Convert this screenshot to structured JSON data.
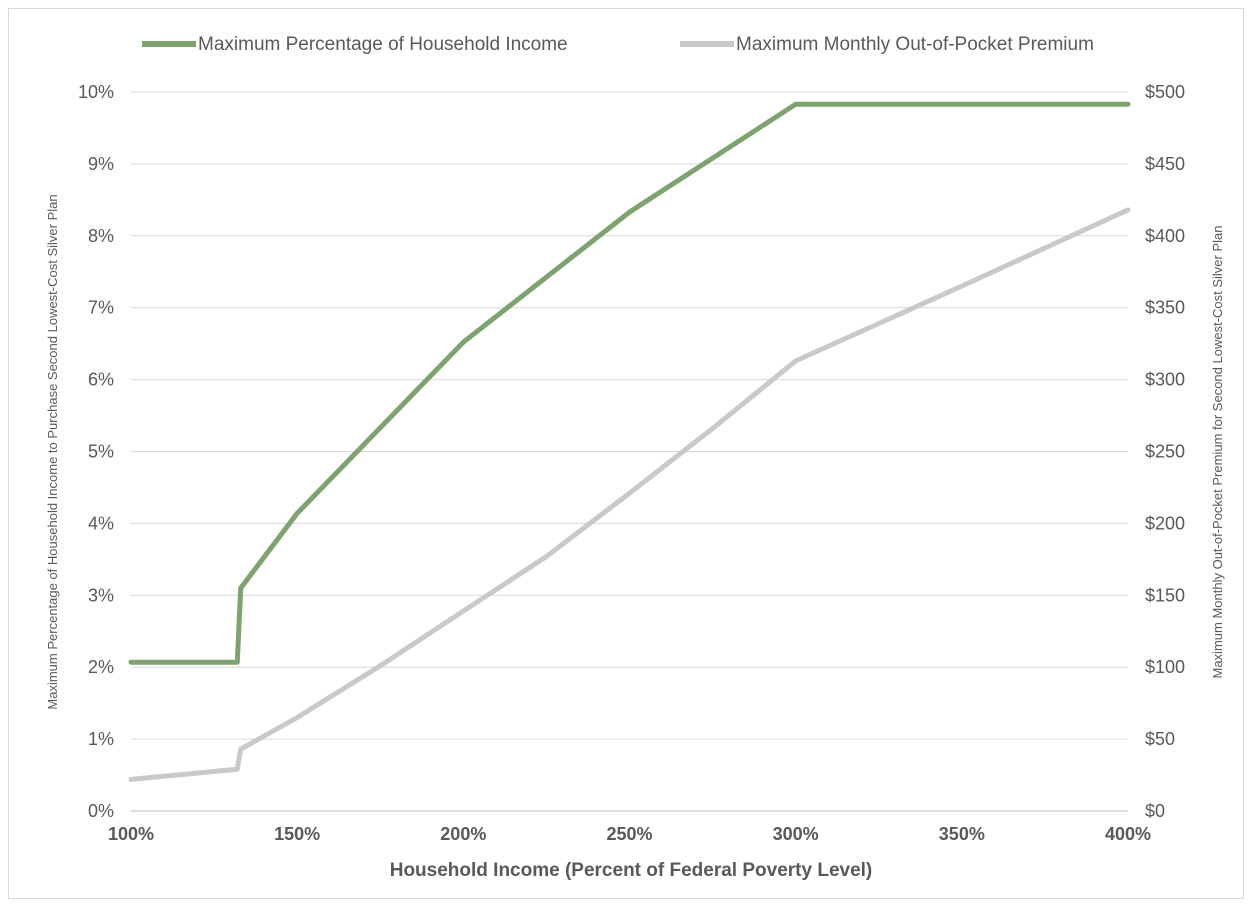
{
  "chart_data": {
    "type": "line",
    "title": "",
    "xlabel": "Household Income (Percent of Federal Poverty Level)",
    "ylabel_left": "Maximum Percentage of Household Income to Purchase Second Lowest-Cost Silver Plan",
    "ylabel_right": "Maximum Monthly Out-of-Pocket Premium for Second Lowest-Cost Silver Plan",
    "xlim": [
      100,
      400
    ],
    "ylim_left": [
      0,
      10
    ],
    "ylim_right": [
      0,
      500
    ],
    "x_ticks": [
      "100%",
      "150%",
      "200%",
      "250%",
      "300%",
      "350%",
      "400%"
    ],
    "x_tick_values": [
      100,
      150,
      200,
      250,
      300,
      350,
      400
    ],
    "y_left_ticks": [
      "0%",
      "1%",
      "2%",
      "3%",
      "4%",
      "5%",
      "6%",
      "7%",
      "8%",
      "9%",
      "10%"
    ],
    "y_left_tick_values": [
      0,
      1,
      2,
      3,
      4,
      5,
      6,
      7,
      8,
      9,
      10
    ],
    "y_right_ticks": [
      "$0",
      "$50",
      "$100",
      "$150",
      "$200",
      "$250",
      "$300",
      "$350",
      "$400",
      "$450",
      "$500"
    ],
    "y_right_tick_values": [
      0,
      50,
      100,
      150,
      200,
      250,
      300,
      350,
      400,
      450,
      500
    ],
    "grid": true,
    "legend_position": "top",
    "series": [
      {
        "name": "Maximum Percentage of Household Income",
        "axis": "left",
        "color": "#7ea36e",
        "x": [
          100,
          132,
          133,
          150,
          200,
          250,
          300,
          400
        ],
        "y": [
          2.07,
          2.07,
          3.1,
          4.14,
          6.52,
          8.33,
          9.83,
          9.83
        ]
      },
      {
        "name": "Maximum Monthly Out-of-Pocket Premium",
        "axis": "right",
        "color": "#c8c9c8",
        "x": [
          100,
          132,
          133,
          150,
          175,
          200,
          225,
          250,
          275,
          300,
          350,
          400
        ],
        "y": [
          22,
          29,
          43,
          65,
          101,
          139,
          177,
          221,
          266,
          313,
          365,
          418
        ]
      }
    ]
  }
}
